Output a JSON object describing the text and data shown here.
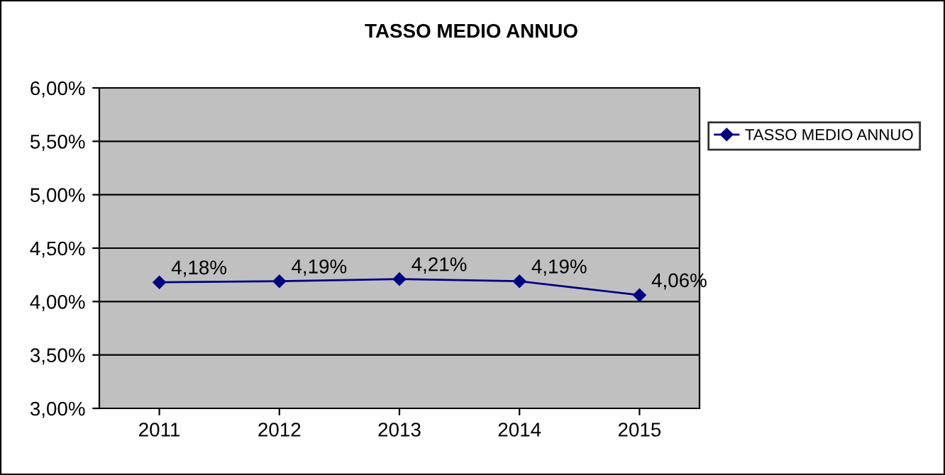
{
  "chart_data": {
    "type": "line",
    "title": "TASSO MEDIO ANNUO",
    "categories": [
      "2011",
      "2012",
      "2013",
      "2014",
      "2015"
    ],
    "series": [
      {
        "name": "TASSO MEDIO ANNUO",
        "color": "#000080",
        "values": [
          4.18,
          4.19,
          4.21,
          4.19,
          4.06
        ],
        "value_labels": [
          "4,18%",
          "4,19%",
          "4,21%",
          "4,19%",
          "4,06%"
        ]
      }
    ],
    "ylim": [
      3,
      6
    ],
    "yticks": [
      {
        "value": 3,
        "label": "3,00%"
      },
      {
        "value": 3.5,
        "label": "3,50%"
      },
      {
        "value": 4,
        "label": "4,00%"
      },
      {
        "value": 4.5,
        "label": "4,50%"
      },
      {
        "value": 5,
        "label": "5,00%"
      },
      {
        "value": 5.5,
        "label": "5,50%"
      },
      {
        "value": 6,
        "label": "6,00%"
      }
    ],
    "grid": "y",
    "legend": "right",
    "marker": "diamond",
    "line_style": "solid"
  }
}
